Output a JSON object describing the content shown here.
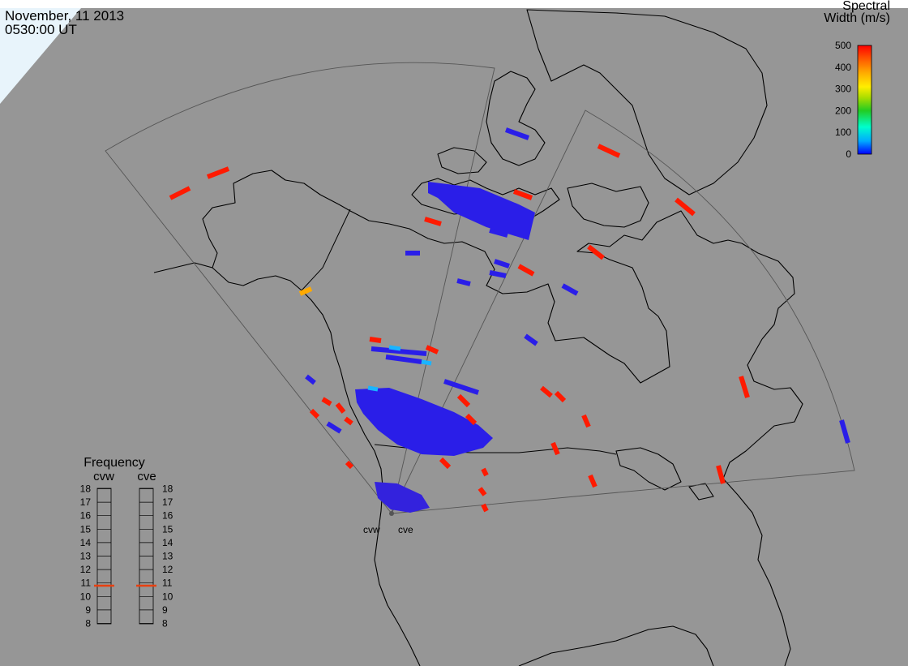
{
  "header": {
    "date": "November, 11 2013",
    "time": "0530:00 UT"
  },
  "colorbar": {
    "title_line1": "Spectral",
    "title_line2": "Width (m/s)",
    "ticks": [
      {
        "value": 500,
        "label": "500"
      },
      {
        "value": 400,
        "label": "400"
      },
      {
        "value": 300,
        "label": "300"
      },
      {
        "value": 200,
        "label": "200"
      },
      {
        "value": 100,
        "label": "100"
      },
      {
        "value": 0,
        "label": "0"
      }
    ],
    "range": [
      0,
      500
    ],
    "colors": [
      "#0000ff",
      "#00aaff",
      "#00ffcc",
      "#22cc22",
      "#aadd00",
      "#ffee00",
      "#ffaa00",
      "#ff5500",
      "#ff0000"
    ]
  },
  "frequency": {
    "title": "Frequency",
    "radars": [
      {
        "name": "cvw",
        "value_mhz": 10.8
      },
      {
        "name": "cve",
        "value_mhz": 10.8
      }
    ],
    "ticks": [
      {
        "value": 18,
        "label": "18"
      },
      {
        "value": 17,
        "label": "17"
      },
      {
        "value": 16,
        "label": "16"
      },
      {
        "value": 15,
        "label": "15"
      },
      {
        "value": 14,
        "label": "14"
      },
      {
        "value": 13,
        "label": "13"
      },
      {
        "value": 12,
        "label": "12"
      },
      {
        "value": 11,
        "label": "11"
      },
      {
        "value": 10,
        "label": "10"
      },
      {
        "value": 9,
        "label": "9"
      },
      {
        "value": 8,
        "label": "8"
      }
    ],
    "marker_color": "#e84010"
  },
  "radar_sites": [
    {
      "label": "cvw"
    },
    {
      "label": "cve"
    }
  ],
  "colors": {
    "ocean": "#969696",
    "land": "#969696",
    "coast": "#000000",
    "fov": "#444444",
    "ice": "#e8f4fb"
  }
}
